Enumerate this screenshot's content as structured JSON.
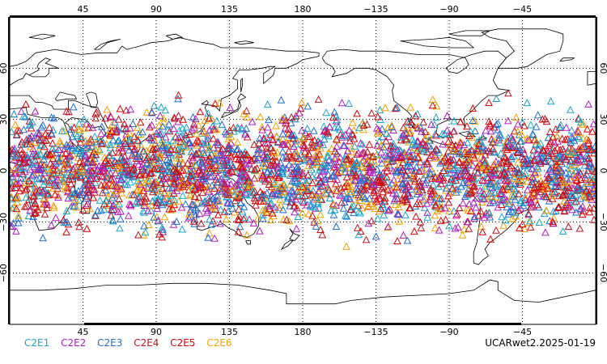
{
  "map": {
    "projection": "cylindrical",
    "lon_center": 180,
    "lat_range": [
      -90,
      90
    ],
    "grid": "dotted",
    "top_lon_labels": [
      "45",
      "90",
      "135",
      "180",
      "−135",
      "−90",
      "−45"
    ],
    "bottom_lon_labels": [
      "45",
      "90",
      "135",
      "180",
      "−135",
      "−90",
      "−45"
    ],
    "lat_labels": [
      "60",
      "30",
      "0",
      "−30",
      "−60"
    ],
    "marker": "open-triangle",
    "point_density": "dense band between ~45S and ~45N, sparse poleward"
  },
  "legend": {
    "items": [
      {
        "label": "C2E1",
        "color": "#19a6c9"
      },
      {
        "label": "C2E2",
        "color": "#b01cc0"
      },
      {
        "label": "C2E3",
        "color": "#1f6fd1"
      },
      {
        "label": "C2E4",
        "color": "#c0141e"
      },
      {
        "label": "C2E5",
        "color": "#e00000"
      },
      {
        "label": "C2E6",
        "color": "#f2a100"
      }
    ]
  },
  "stamp": "UCARwet2.2025-01-19"
}
